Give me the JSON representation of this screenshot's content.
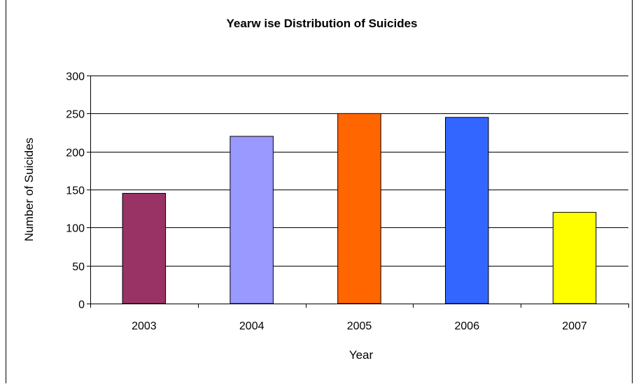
{
  "chart_data": {
    "type": "bar",
    "title": "Yearw ise Distribution of Suicides",
    "xlabel": "Year",
    "ylabel": "Number of Suicides",
    "categories": [
      "2003",
      "2004",
      "2005",
      "2006",
      "2007"
    ],
    "values": [
      145,
      220,
      250,
      245,
      120
    ],
    "bar_colors": [
      "#993366",
      "#9999FF",
      "#FF6600",
      "#3366FF",
      "#FFFF00"
    ],
    "ylim": [
      0,
      300
    ],
    "yticks": [
      0,
      50,
      100,
      150,
      200,
      250,
      300
    ],
    "grid": true,
    "legend": "none"
  }
}
